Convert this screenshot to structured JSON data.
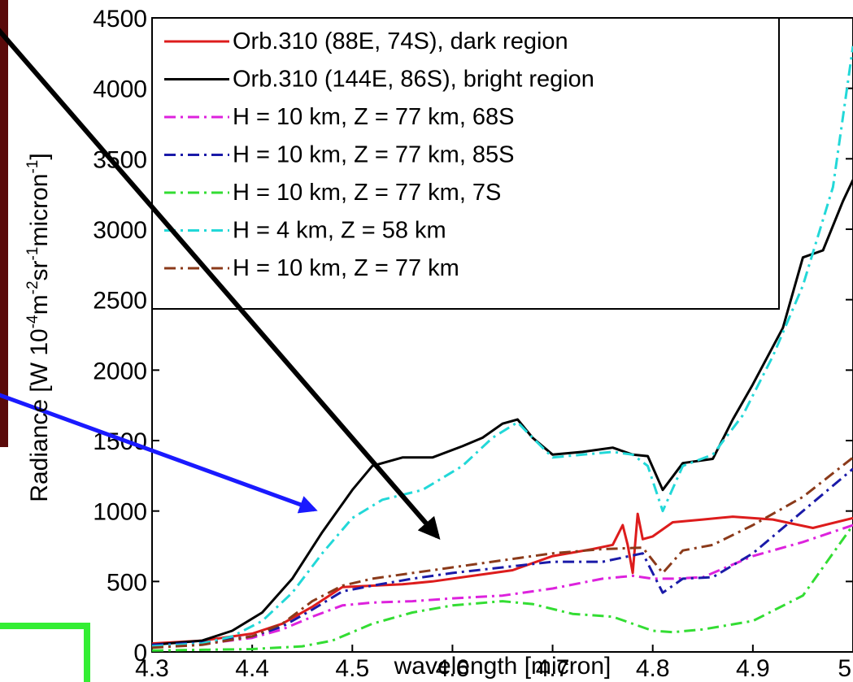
{
  "chart_data": {
    "type": "line",
    "xlabel": "wavelength [micron]",
    "ylabel": "Radiance [W 10-4m-2sr-1micron-1]",
    "ylabel_parts": {
      "base1": "Radiance [W 10",
      "sup1": "-4",
      "base2": "m",
      "sup2": "-2",
      "base3": "sr",
      "sup3": "-1",
      "base4": "micron",
      "sup4": "-1",
      "base5": "]"
    },
    "xlim": [
      4.3,
      5.0
    ],
    "ylim": [
      0,
      4500
    ],
    "xticks": [
      4.3,
      4.4,
      4.5,
      4.6,
      4.7,
      4.8,
      4.9,
      5.0
    ],
    "xtick_labels": [
      "4.3",
      "4.4",
      "4.5",
      "4.6",
      "4.7",
      "4.8",
      "4.9",
      "5"
    ],
    "yticks": [
      0,
      500,
      1000,
      1500,
      2000,
      2500,
      3000,
      3500,
      4000,
      4500
    ],
    "ytick_labels": [
      "0",
      "500",
      "1000",
      "1500",
      "2000",
      "2500",
      "3000",
      "3500",
      "4000",
      "4500"
    ],
    "grid": false,
    "legend_position": "top-right",
    "series": [
      {
        "name": "Orb.310 (88E, 74S), dark region",
        "color": "#dd1c1c",
        "dash": "solid",
        "x": [
          4.3,
          4.35,
          4.4,
          4.43,
          4.46,
          4.49,
          4.52,
          4.55,
          4.58,
          4.62,
          4.66,
          4.7,
          4.74,
          4.76,
          4.77,
          4.775,
          4.78,
          4.785,
          4.79,
          4.8,
          4.82,
          4.85,
          4.88,
          4.92,
          4.96,
          5.0
        ],
        "y": [
          60,
          80,
          130,
          200,
          320,
          460,
          470,
          480,
          500,
          540,
          580,
          680,
          730,
          760,
          900,
          760,
          560,
          980,
          800,
          820,
          920,
          940,
          960,
          940,
          880,
          950
        ]
      },
      {
        "name": "Orb.310 (144E, 86S), bright region",
        "color": "#000000",
        "dash": "solid",
        "x": [
          4.3,
          4.35,
          4.38,
          4.41,
          4.44,
          4.47,
          4.5,
          4.52,
          4.55,
          4.58,
          4.61,
          4.63,
          4.65,
          4.665,
          4.68,
          4.7,
          4.73,
          4.76,
          4.78,
          4.795,
          4.81,
          4.83,
          4.86,
          4.88,
          4.9,
          4.93,
          4.95,
          4.97,
          4.99,
          5.0
        ],
        "y": [
          50,
          80,
          150,
          280,
          520,
          850,
          1150,
          1320,
          1380,
          1380,
          1460,
          1520,
          1620,
          1650,
          1520,
          1400,
          1420,
          1450,
          1400,
          1390,
          1150,
          1340,
          1370,
          1650,
          1900,
          2300,
          2800,
          2850,
          3200,
          3350
        ]
      },
      {
        "name": "H = 10 km, Z = 77 km, 68S",
        "color": "#dd22dd",
        "dash": "dashdot",
        "x": [
          4.3,
          4.35,
          4.4,
          4.43,
          4.46,
          4.49,
          4.52,
          4.56,
          4.6,
          4.65,
          4.7,
          4.75,
          4.78,
          4.8,
          4.82,
          4.85,
          4.9,
          4.95,
          5.0
        ],
        "y": [
          40,
          55,
          100,
          160,
          250,
          330,
          350,
          360,
          380,
          400,
          450,
          520,
          540,
          520,
          520,
          530,
          680,
          780,
          900
        ]
      },
      {
        "name": "H = 10 km, Z = 77 km, 85S",
        "color": "#1a1aa8",
        "dash": "dashdot",
        "x": [
          4.3,
          4.35,
          4.4,
          4.43,
          4.46,
          4.49,
          4.52,
          4.56,
          4.6,
          4.65,
          4.7,
          4.75,
          4.79,
          4.81,
          4.83,
          4.86,
          4.9,
          4.93,
          4.96,
          5.0
        ],
        "y": [
          50,
          65,
          110,
          180,
          300,
          430,
          470,
          520,
          560,
          600,
          640,
          640,
          700,
          420,
          520,
          530,
          700,
          880,
          1060,
          1300
        ]
      },
      {
        "name": "H = 10 km, Z = 77 km, 7S",
        "color": "#33dd33",
        "dash": "dashdot",
        "x": [
          4.3,
          4.35,
          4.4,
          4.45,
          4.48,
          4.52,
          4.56,
          4.6,
          4.65,
          4.68,
          4.72,
          4.76,
          4.8,
          4.82,
          4.85,
          4.9,
          4.95,
          5.0
        ],
        "y": [
          10,
          15,
          20,
          40,
          80,
          200,
          280,
          330,
          360,
          340,
          270,
          250,
          150,
          140,
          160,
          220,
          400,
          900
        ]
      },
      {
        "name": "H = 4 km, Z = 58 km",
        "color": "#22d8d8",
        "dash": "dashdot",
        "x": [
          4.3,
          4.35,
          4.38,
          4.41,
          4.44,
          4.47,
          4.5,
          4.53,
          4.57,
          4.61,
          4.64,
          4.665,
          4.68,
          4.7,
          4.73,
          4.76,
          4.78,
          4.795,
          4.81,
          4.83,
          4.86,
          4.89,
          4.92,
          4.95,
          4.98,
          5.0
        ],
        "y": [
          40,
          60,
          110,
          220,
          420,
          700,
          950,
          1080,
          1150,
          1320,
          1520,
          1630,
          1520,
          1380,
          1400,
          1420,
          1400,
          1320,
          1000,
          1320,
          1400,
          1680,
          2100,
          2600,
          3300,
          4300
        ]
      },
      {
        "name": "H = 10 km, Z = 77 km",
        "color": "#8b3a1a",
        "dash": "dashdot",
        "x": [
          4.3,
          4.35,
          4.4,
          4.43,
          4.46,
          4.49,
          4.52,
          4.56,
          4.6,
          4.65,
          4.7,
          4.75,
          4.79,
          4.81,
          4.83,
          4.86,
          4.9,
          4.95,
          5.0
        ],
        "y": [
          30,
          50,
          110,
          200,
          360,
          470,
          520,
          560,
          600,
          650,
          700,
          730,
          740,
          560,
          720,
          760,
          900,
          1100,
          1380
        ]
      }
    ],
    "annotations": [
      {
        "type": "arrow",
        "color": "#000000",
        "from": [
          4.14,
          4470
        ],
        "to": [
          4.585,
          820
        ]
      },
      {
        "type": "arrow",
        "color": "#1a1aff",
        "from": [
          4.06,
          2050
        ],
        "to": [
          4.462,
          1010
        ]
      }
    ]
  }
}
